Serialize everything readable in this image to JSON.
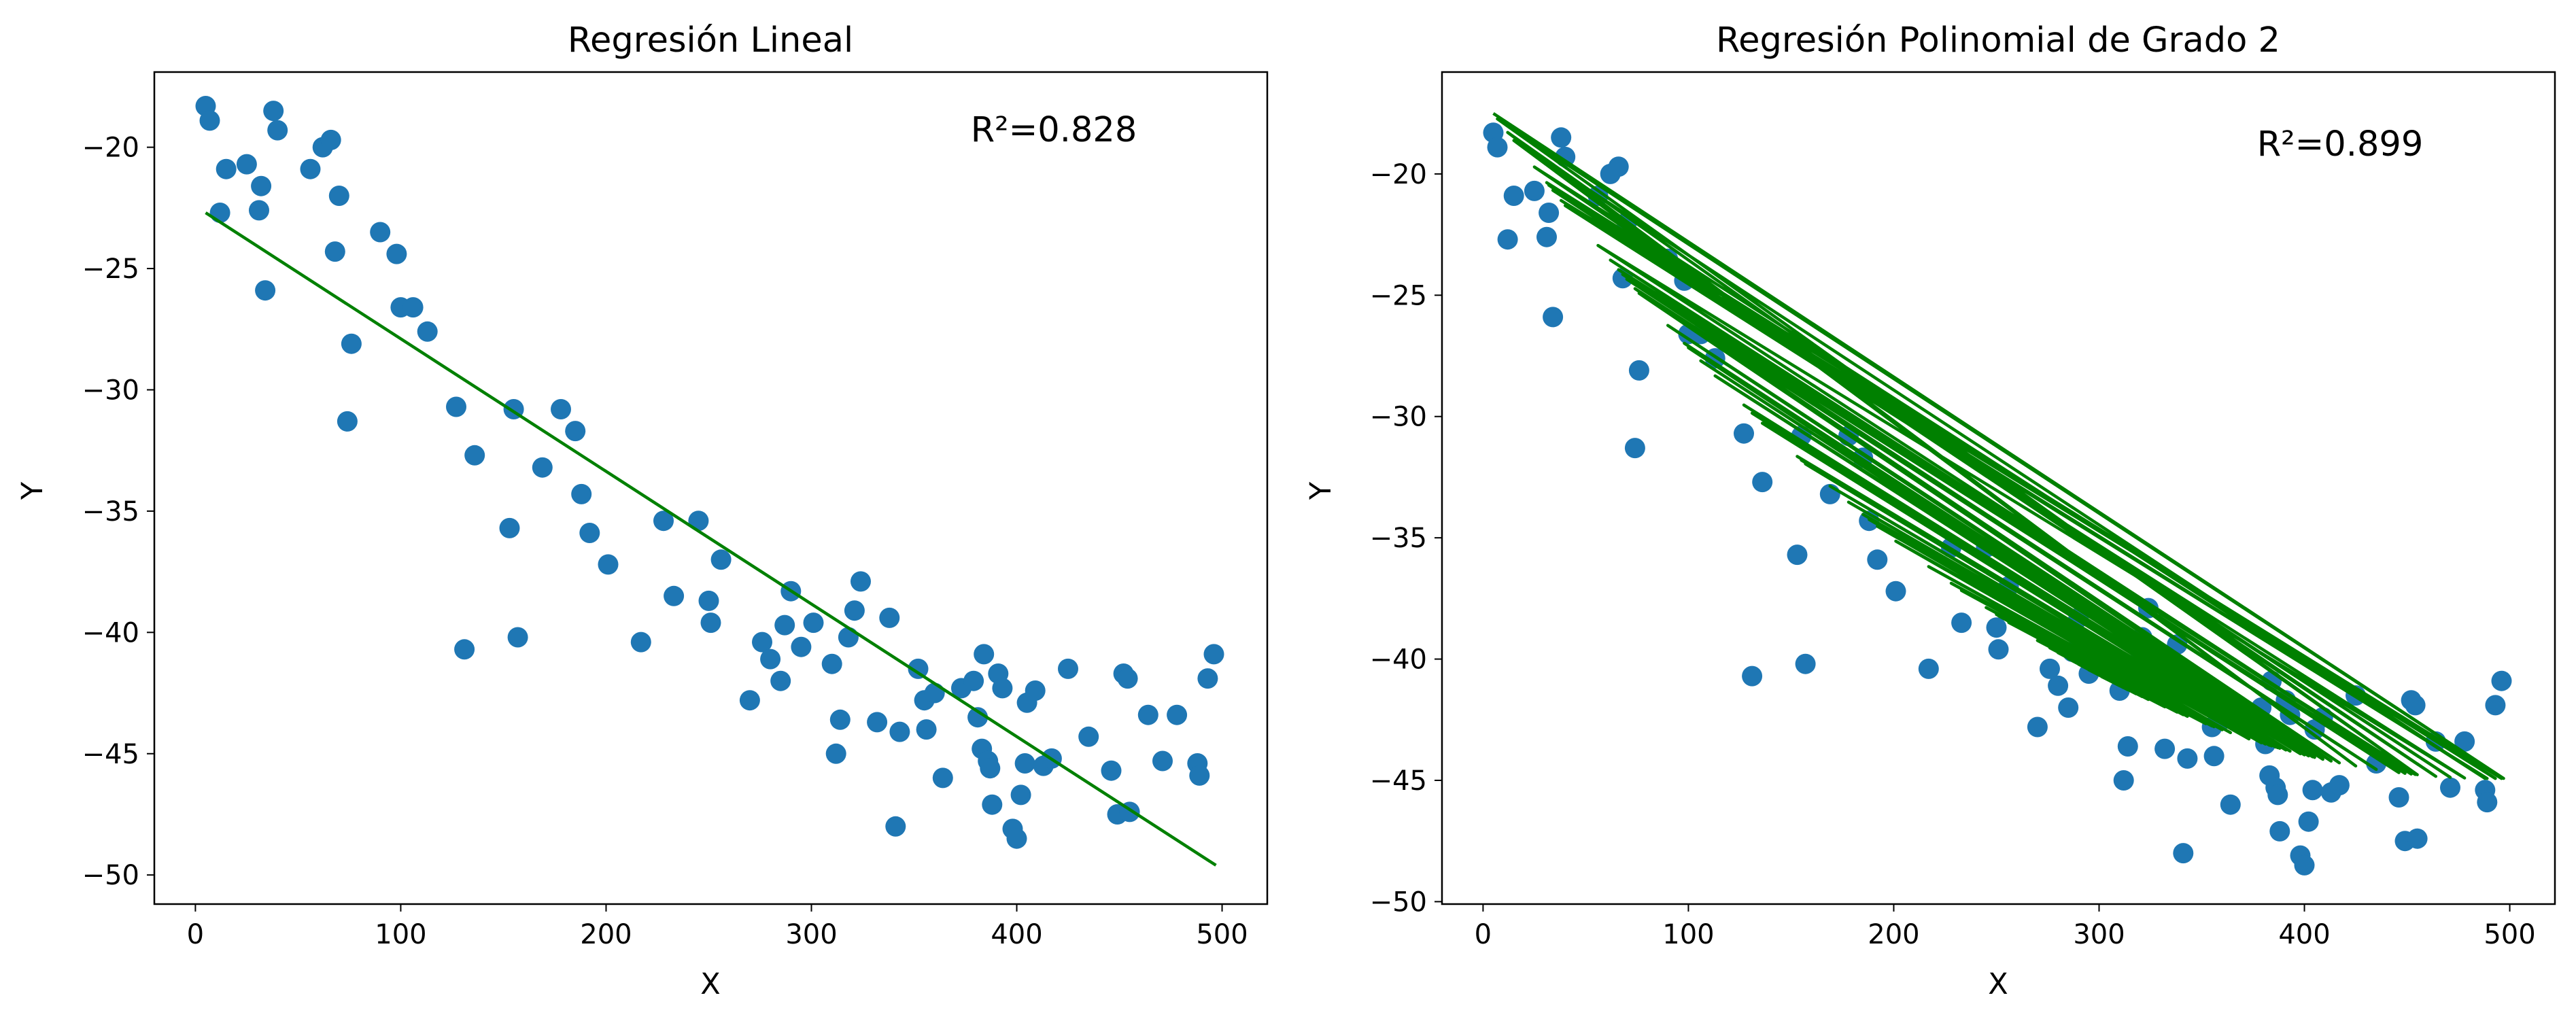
{
  "chart_data": [
    {
      "type": "scatter",
      "title": "Regresión Lineal",
      "xlabel": "X",
      "ylabel": "Y",
      "xlim": [
        -20,
        522
      ],
      "ylim": [
        -51.2,
        -16.9
      ],
      "xticks": [
        0,
        100,
        200,
        300,
        400,
        500
      ],
      "xtick_labels": [
        "0",
        "100",
        "200",
        "300",
        "400",
        "500"
      ],
      "yticks": [
        -50,
        -45,
        -40,
        -35,
        -30,
        -25,
        -20
      ],
      "ytick_labels": [
        "−50",
        "−45",
        "−40",
        "−35",
        "−30",
        "−25",
        "−20"
      ],
      "grid": false,
      "annotation": "R²=0.828",
      "colors": {
        "points": "#1f77b4",
        "fit": "#008000"
      },
      "series": [
        {
          "type": "scatter",
          "x": [
            5,
            7,
            12,
            15,
            25,
            31,
            32,
            34,
            38,
            40,
            56,
            62,
            66,
            68,
            70,
            74,
            76,
            90,
            98,
            100,
            106,
            113,
            127,
            131,
            136,
            153,
            155,
            157,
            169,
            178,
            185,
            188,
            192,
            201,
            217,
            228,
            233,
            245,
            250,
            251,
            256,
            270,
            276,
            280,
            285,
            287,
            290,
            295,
            301,
            310,
            312,
            314,
            318,
            321,
            324,
            332,
            338,
            341,
            343,
            352,
            355,
            356,
            360,
            364,
            373,
            379,
            381,
            383,
            384,
            386,
            387,
            388,
            391,
            393,
            398,
            400,
            402,
            404,
            405,
            409,
            413,
            417,
            425,
            435,
            446,
            449,
            452,
            454,
            455,
            464,
            471,
            478,
            488,
            489,
            493,
            496
          ],
          "y": [
            -18.3,
            -18.9,
            -22.7,
            -20.9,
            -20.7,
            -22.6,
            -21.6,
            -25.9,
            -18.5,
            -19.3,
            -20.9,
            -20.0,
            -19.7,
            -24.3,
            -22.0,
            -31.3,
            -28.1,
            -23.5,
            -24.4,
            -26.6,
            -26.6,
            -27.6,
            -30.7,
            -40.7,
            -32.7,
            -35.7,
            -30.8,
            -40.2,
            -33.2,
            -30.8,
            -31.7,
            -34.3,
            -35.9,
            -37.2,
            -40.4,
            -35.4,
            -38.5,
            -35.4,
            -38.7,
            -39.6,
            -37.0,
            -42.8,
            -40.4,
            -41.1,
            -42.0,
            -39.7,
            -38.3,
            -40.6,
            -39.6,
            -41.3,
            -45.0,
            -43.6,
            -40.2,
            -39.1,
            -37.9,
            -43.7,
            -39.4,
            -48.0,
            -44.1,
            -41.5,
            -42.8,
            -44.0,
            -42.5,
            -46.0,
            -42.3,
            -42.0,
            -43.5,
            -44.8,
            -40.9,
            -45.3,
            -45.6,
            -47.1,
            -41.7,
            -42.3,
            -48.1,
            -48.5,
            -46.7,
            -45.4,
            -42.9,
            -42.4,
            -45.5,
            -45.2,
            -41.5,
            -44.3,
            -45.7,
            -47.5,
            -41.7,
            -41.9,
            -47.4,
            -43.4,
            -45.3,
            -43.4,
            -45.4,
            -45.9,
            -41.9,
            -40.9
          ]
        },
        {
          "type": "line",
          "x": [
            5,
            497
          ],
          "y": [
            -22.7,
            -49.6
          ]
        }
      ]
    },
    {
      "type": "scatter",
      "title": "Regresión Polinomial de Grado 2",
      "xlabel": "X",
      "ylabel": "Y",
      "xlim": [
        -20,
        522
      ],
      "ylim": [
        -50.1,
        -15.8
      ],
      "xticks": [
        0,
        100,
        200,
        300,
        400,
        500
      ],
      "xtick_labels": [
        "0",
        "100",
        "200",
        "300",
        "400",
        "500"
      ],
      "yticks": [
        -50,
        -45,
        -40,
        -35,
        -30,
        -25,
        -20
      ],
      "ytick_labels": [
        "−50",
        "−45",
        "−40",
        "−35",
        "−30",
        "−25",
        "−20"
      ],
      "grid": false,
      "annotation": "R²=0.899",
      "colors": {
        "points": "#1f77b4",
        "fit": "#008000"
      },
      "fit_coefficients": {
        "a": 0.0001157,
        "b": -0.1138,
        "c": -16.94
      },
      "series": [
        {
          "type": "scatter",
          "x": [
            5,
            7,
            12,
            15,
            25,
            31,
            32,
            34,
            38,
            40,
            56,
            62,
            66,
            68,
            70,
            74,
            76,
            90,
            98,
            100,
            106,
            113,
            127,
            131,
            136,
            153,
            155,
            157,
            169,
            178,
            185,
            188,
            192,
            201,
            217,
            228,
            233,
            245,
            250,
            251,
            256,
            270,
            276,
            280,
            285,
            287,
            290,
            295,
            301,
            310,
            312,
            314,
            318,
            321,
            324,
            332,
            338,
            341,
            343,
            352,
            355,
            356,
            360,
            364,
            373,
            379,
            381,
            383,
            384,
            386,
            387,
            388,
            391,
            393,
            398,
            400,
            402,
            404,
            405,
            409,
            413,
            417,
            425,
            435,
            446,
            449,
            452,
            454,
            455,
            464,
            471,
            478,
            488,
            489,
            493,
            496
          ],
          "y": [
            -18.3,
            -18.9,
            -22.7,
            -20.9,
            -20.7,
            -22.6,
            -21.6,
            -25.9,
            -18.5,
            -19.3,
            -20.9,
            -20.0,
            -19.7,
            -24.3,
            -22.0,
            -31.3,
            -28.1,
            -23.5,
            -24.4,
            -26.6,
            -26.6,
            -27.6,
            -30.7,
            -40.7,
            -32.7,
            -35.7,
            -30.8,
            -40.2,
            -33.2,
            -30.8,
            -31.7,
            -34.3,
            -35.9,
            -37.2,
            -40.4,
            -35.4,
            -38.5,
            -35.4,
            -38.7,
            -39.6,
            -37.0,
            -42.8,
            -40.4,
            -41.1,
            -42.0,
            -39.7,
            -38.3,
            -40.6,
            -39.6,
            -41.3,
            -45.0,
            -43.6,
            -40.2,
            -39.1,
            -37.9,
            -43.7,
            -39.4,
            -48.0,
            -44.1,
            -41.5,
            -42.8,
            -44.0,
            -42.5,
            -46.0,
            -42.3,
            -42.0,
            -43.5,
            -44.8,
            -40.9,
            -45.3,
            -45.6,
            -47.1,
            -41.7,
            -42.3,
            -48.1,
            -48.5,
            -46.7,
            -45.4,
            -42.9,
            -42.4,
            -45.5,
            -45.2,
            -41.5,
            -44.3,
            -45.7,
            -47.5,
            -41.7,
            -41.9,
            -47.4,
            -43.4,
            -45.3,
            -43.4,
            -45.4,
            -45.9,
            -41.9,
            -40.9
          ]
        },
        {
          "type": "line",
          "x_order": [
            5,
            497,
            7,
            455,
            12,
            425,
            15,
            488,
            25,
            464,
            31,
            493,
            32,
            471,
            34,
            496,
            38,
            489,
            40,
            478,
            56,
            452,
            62,
            446,
            66,
            454,
            68,
            449,
            70,
            435,
            74,
            417,
            76,
            413,
            90,
            409,
            98,
            405,
            100,
            402,
            106,
            404,
            113,
            400,
            127,
            398,
            131,
            393,
            136,
            391,
            153,
            388,
            155,
            387,
            157,
            386,
            169,
            384,
            178,
            383,
            185,
            381,
            188,
            379,
            192,
            373,
            201,
            364,
            217,
            360,
            228,
            356,
            233,
            355,
            245,
            352,
            250,
            343,
            251,
            341,
            256,
            338,
            270,
            332,
            276,
            324,
            280,
            321,
            285,
            318,
            287,
            314,
            290,
            312,
            295,
            310,
            301
          ]
        }
      ]
    }
  ]
}
